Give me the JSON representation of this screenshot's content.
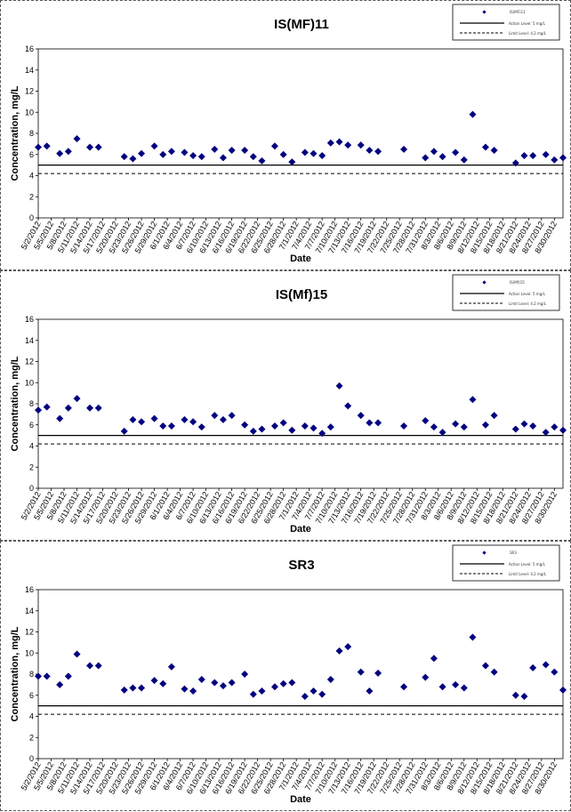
{
  "colors": {
    "marker": "#000080",
    "line": "#000000",
    "frame": "#555555"
  },
  "chart_data": [
    {
      "type": "scatter",
      "title": "IS(MF)11",
      "xlabel": "Date",
      "ylabel": "Concentration, mg/L",
      "ylim": [
        0,
        16
      ],
      "yticks": [
        0,
        2,
        4,
        6,
        8,
        10,
        12,
        14,
        16
      ],
      "xlim": [
        "5/2/2012",
        "9/1/2012"
      ],
      "xticks": [
        "5/2/2012",
        "5/5/2012",
        "5/8/2012",
        "5/11/2012",
        "5/14/2012",
        "5/17/2012",
        "5/20/2012",
        "5/23/2012",
        "5/26/2012",
        "5/29/2012",
        "6/1/2012",
        "6/4/2012",
        "6/7/2012",
        "6/10/2012",
        "6/13/2012",
        "6/16/2012",
        "6/19/2012",
        "6/22/2012",
        "6/25/2012",
        "6/28/2012",
        "7/1/2012",
        "7/4/2012",
        "7/7/2012",
        "7/10/2012",
        "7/13/2012",
        "7/16/2012",
        "7/19/2012",
        "7/22/2012",
        "7/25/2012",
        "7/28/2012",
        "7/31/2012",
        "8/3/2012",
        "8/6/2012",
        "8/9/2012",
        "8/12/2012",
        "8/15/2012",
        "8/18/2012",
        "8/21/2012",
        "8/24/2012",
        "8/27/2012",
        "8/30/2012"
      ],
      "legend_position": "top-right",
      "legend": [
        "IS(MF)11",
        "Action Level: 5 mg/L",
        "Limit Level: 4.2 mg/L"
      ],
      "reference_lines": [
        {
          "name": "Action Level: 5 mg/L",
          "y": 5,
          "style": "solid"
        },
        {
          "name": "Limit Level: 4.2 mg/L",
          "y": 4.2,
          "style": "dashed"
        }
      ],
      "series": [
        {
          "name": "IS(MF)11",
          "points": [
            [
              "5/2/2012",
              6.7
            ],
            [
              "5/4/2012",
              6.8
            ],
            [
              "5/7/2012",
              6.1
            ],
            [
              "5/9/2012",
              6.3
            ],
            [
              "5/11/2012",
              7.5
            ],
            [
              "5/14/2012",
              6.7
            ],
            [
              "5/16/2012",
              6.7
            ],
            [
              "5/22/2012",
              5.8
            ],
            [
              "5/24/2012",
              5.6
            ],
            [
              "5/26/2012",
              6.1
            ],
            [
              "5/29/2012",
              6.8
            ],
            [
              "5/31/2012",
              6.0
            ],
            [
              "6/2/2012",
              6.3
            ],
            [
              "6/5/2012",
              6.2
            ],
            [
              "6/7/2012",
              5.9
            ],
            [
              "6/9/2012",
              5.8
            ],
            [
              "6/12/2012",
              6.5
            ],
            [
              "6/14/2012",
              5.7
            ],
            [
              "6/16/2012",
              6.4
            ],
            [
              "6/19/2012",
              6.4
            ],
            [
              "6/21/2012",
              5.8
            ],
            [
              "6/23/2012",
              5.4
            ],
            [
              "6/26/2012",
              6.8
            ],
            [
              "6/28/2012",
              6.0
            ],
            [
              "6/30/2012",
              5.3
            ],
            [
              "7/3/2012",
              6.2
            ],
            [
              "7/5/2012",
              6.1
            ],
            [
              "7/7/2012",
              5.9
            ],
            [
              "7/9/2012",
              7.1
            ],
            [
              "7/11/2012",
              7.2
            ],
            [
              "7/13/2012",
              6.9
            ],
            [
              "7/16/2012",
              6.9
            ],
            [
              "7/18/2012",
              6.4
            ],
            [
              "7/20/2012",
              6.3
            ],
            [
              "7/26/2012",
              6.5
            ],
            [
              "7/31/2012",
              5.7
            ],
            [
              "8/2/2012",
              6.3
            ],
            [
              "8/4/2012",
              5.8
            ],
            [
              "8/7/2012",
              6.2
            ],
            [
              "8/9/2012",
              5.5
            ],
            [
              "8/11/2012",
              9.8
            ],
            [
              "8/14/2012",
              6.7
            ],
            [
              "8/16/2012",
              6.4
            ],
            [
              "8/21/2012",
              5.2
            ],
            [
              "8/23/2012",
              5.9
            ],
            [
              "8/25/2012",
              5.9
            ],
            [
              "8/28/2012",
              6.0
            ],
            [
              "8/30/2012",
              5.5
            ],
            [
              "9/1/2012",
              5.7
            ]
          ]
        }
      ]
    },
    {
      "type": "scatter",
      "title": "IS(Mf)15",
      "xlabel": "Date",
      "ylabel": "Concentration, mg/L",
      "ylim": [
        0,
        16
      ],
      "yticks": [
        0,
        2,
        4,
        6,
        8,
        10,
        12,
        14,
        16
      ],
      "xlim": [
        "5/2/2012",
        "9/1/2012"
      ],
      "xticks": [
        "5/2/2012",
        "5/5/2012",
        "5/8/2012",
        "5/11/2012",
        "5/14/2012",
        "5/17/2012",
        "5/20/2012",
        "5/23/2012",
        "5/26/2012",
        "5/29/2012",
        "6/1/2012",
        "6/4/2012",
        "6/7/2012",
        "6/10/2012",
        "6/13/2012",
        "6/16/2012",
        "6/19/2012",
        "6/22/2012",
        "6/25/2012",
        "6/28/2012",
        "7/1/2012",
        "7/4/2012",
        "7/7/2012",
        "7/10/2012",
        "7/13/2012",
        "7/16/2012",
        "7/19/2012",
        "7/22/2012",
        "7/25/2012",
        "7/28/2012",
        "7/31/2012",
        "8/3/2012",
        "8/6/2012",
        "8/9/2012",
        "8/12/2012",
        "8/15/2012",
        "8/18/2012",
        "8/21/2012",
        "8/24/2012",
        "8/27/2012",
        "8/30/2012"
      ],
      "legend_position": "top-right",
      "legend": [
        "IS(Mf)15",
        "Action Level: 5 mg/L",
        "Limit Level: 4.2 mg/L"
      ],
      "reference_lines": [
        {
          "name": "Action Level: 5 mg/L",
          "y": 5,
          "style": "solid"
        },
        {
          "name": "Limit Level: 4.2 mg/L",
          "y": 4.2,
          "style": "dashed"
        }
      ],
      "series": [
        {
          "name": "IS(Mf)15",
          "points": [
            [
              "5/2/2012",
              7.4
            ],
            [
              "5/4/2012",
              7.7
            ],
            [
              "5/7/2012",
              6.6
            ],
            [
              "5/9/2012",
              7.6
            ],
            [
              "5/11/2012",
              8.5
            ],
            [
              "5/14/2012",
              7.6
            ],
            [
              "5/16/2012",
              7.6
            ],
            [
              "5/22/2012",
              5.4
            ],
            [
              "5/24/2012",
              6.5
            ],
            [
              "5/26/2012",
              6.3
            ],
            [
              "5/29/2012",
              6.6
            ],
            [
              "5/31/2012",
              5.9
            ],
            [
              "6/2/2012",
              5.9
            ],
            [
              "6/5/2012",
              6.5
            ],
            [
              "6/7/2012",
              6.3
            ],
            [
              "6/9/2012",
              5.8
            ],
            [
              "6/12/2012",
              6.9
            ],
            [
              "6/14/2012",
              6.5
            ],
            [
              "6/16/2012",
              6.9
            ],
            [
              "6/19/2012",
              6.0
            ],
            [
              "6/21/2012",
              5.4
            ],
            [
              "6/23/2012",
              5.6
            ],
            [
              "6/26/2012",
              5.9
            ],
            [
              "6/28/2012",
              6.2
            ],
            [
              "6/30/2012",
              5.5
            ],
            [
              "7/3/2012",
              5.9
            ],
            [
              "7/5/2012",
              5.7
            ],
            [
              "7/7/2012",
              5.2
            ],
            [
              "7/9/2012",
              5.8
            ],
            [
              "7/11/2012",
              9.7
            ],
            [
              "7/13/2012",
              7.8
            ],
            [
              "7/16/2012",
              6.9
            ],
            [
              "7/18/2012",
              6.2
            ],
            [
              "7/20/2012",
              6.2
            ],
            [
              "7/26/2012",
              5.9
            ],
            [
              "7/31/2012",
              6.4
            ],
            [
              "8/2/2012",
              5.8
            ],
            [
              "8/4/2012",
              5.3
            ],
            [
              "8/7/2012",
              6.1
            ],
            [
              "8/9/2012",
              5.8
            ],
            [
              "8/11/2012",
              8.4
            ],
            [
              "8/14/2012",
              6.0
            ],
            [
              "8/16/2012",
              6.9
            ],
            [
              "8/21/2012",
              5.6
            ],
            [
              "8/23/2012",
              6.1
            ],
            [
              "8/25/2012",
              5.9
            ],
            [
              "8/28/2012",
              5.3
            ],
            [
              "8/30/2012",
              5.8
            ],
            [
              "9/1/2012",
              5.5
            ]
          ]
        }
      ]
    },
    {
      "type": "scatter",
      "title": "SR3",
      "xlabel": "Date",
      "ylabel": "Concentration, mg/L",
      "ylim": [
        0,
        16
      ],
      "yticks": [
        0,
        2,
        4,
        6,
        8,
        10,
        12,
        14,
        16
      ],
      "xlim": [
        "5/2/2012",
        "9/1/2012"
      ],
      "xticks": [
        "5/2/2012",
        "5/5/2012",
        "5/8/2012",
        "5/11/2012",
        "5/14/2012",
        "5/17/2012",
        "5/20/2012",
        "5/23/2012",
        "5/26/2012",
        "5/29/2012",
        "6/1/2012",
        "6/4/2012",
        "6/7/2012",
        "6/10/2012",
        "6/13/2012",
        "6/16/2012",
        "6/19/2012",
        "6/22/2012",
        "6/25/2012",
        "6/28/2012",
        "7/1/2012",
        "7/4/2012",
        "7/7/2012",
        "7/10/2012",
        "7/13/2012",
        "7/16/2012",
        "7/19/2012",
        "7/22/2012",
        "7/25/2012",
        "7/28/2012",
        "7/31/2012",
        "8/3/2012",
        "8/6/2012",
        "8/9/2012",
        "8/12/2012",
        "8/15/2012",
        "8/18/2012",
        "8/21/2012",
        "8/24/2012",
        "8/27/2012",
        "8/30/2012"
      ],
      "legend_position": "top-right",
      "legend": [
        "SR3",
        "Action Level: 5 mg/L",
        "Limit Level: 4.2 mg/L"
      ],
      "reference_lines": [
        {
          "name": "Action Level: 5 mg/L",
          "y": 5,
          "style": "solid"
        },
        {
          "name": "Limit Level: 4.2 mg/L",
          "y": 4.2,
          "style": "dashed"
        }
      ],
      "series": [
        {
          "name": "SR3",
          "points": [
            [
              "5/2/2012",
              7.8
            ],
            [
              "5/4/2012",
              7.8
            ],
            [
              "5/7/2012",
              7.0
            ],
            [
              "5/9/2012",
              7.8
            ],
            [
              "5/11/2012",
              9.9
            ],
            [
              "5/14/2012",
              8.8
            ],
            [
              "5/16/2012",
              8.8
            ],
            [
              "5/22/2012",
              6.5
            ],
            [
              "5/24/2012",
              6.7
            ],
            [
              "5/26/2012",
              6.7
            ],
            [
              "5/29/2012",
              7.4
            ],
            [
              "5/31/2012",
              7.1
            ],
            [
              "6/2/2012",
              8.7
            ],
            [
              "6/5/2012",
              6.6
            ],
            [
              "6/7/2012",
              6.4
            ],
            [
              "6/9/2012",
              7.5
            ],
            [
              "6/12/2012",
              7.2
            ],
            [
              "6/14/2012",
              6.9
            ],
            [
              "6/16/2012",
              7.2
            ],
            [
              "6/19/2012",
              8.0
            ],
            [
              "6/21/2012",
              6.1
            ],
            [
              "6/23/2012",
              6.4
            ],
            [
              "6/26/2012",
              6.8
            ],
            [
              "6/28/2012",
              7.1
            ],
            [
              "6/30/2012",
              7.2
            ],
            [
              "7/3/2012",
              5.9
            ],
            [
              "7/5/2012",
              6.4
            ],
            [
              "7/7/2012",
              6.1
            ],
            [
              "7/9/2012",
              7.5
            ],
            [
              "7/11/2012",
              10.2
            ],
            [
              "7/13/2012",
              10.6
            ],
            [
              "7/16/2012",
              8.2
            ],
            [
              "7/18/2012",
              6.4
            ],
            [
              "7/20/2012",
              8.1
            ],
            [
              "7/26/2012",
              6.8
            ],
            [
              "7/31/2012",
              7.7
            ],
            [
              "8/2/2012",
              9.5
            ],
            [
              "8/4/2012",
              6.8
            ],
            [
              "8/7/2012",
              7.0
            ],
            [
              "8/9/2012",
              6.7
            ],
            [
              "8/11/2012",
              11.5
            ],
            [
              "8/14/2012",
              8.8
            ],
            [
              "8/16/2012",
              8.2
            ],
            [
              "8/21/2012",
              6.0
            ],
            [
              "8/23/2012",
              5.9
            ],
            [
              "8/25/2012",
              8.6
            ],
            [
              "8/28/2012",
              8.9
            ],
            [
              "8/30/2012",
              8.2
            ],
            [
              "9/1/2012",
              6.5
            ]
          ]
        }
      ]
    }
  ]
}
